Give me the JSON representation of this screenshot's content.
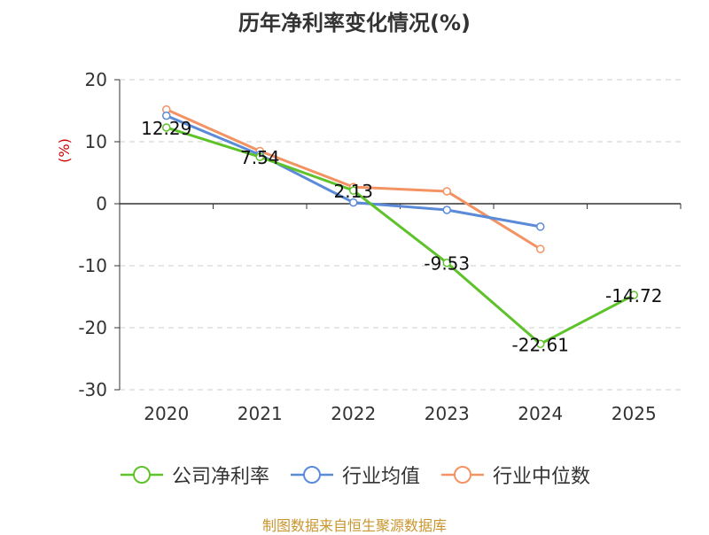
{
  "chart_data": {
    "type": "line",
    "title": "历年净利率变化情况(%)",
    "ylabel": "(%)",
    "categories": [
      "2020",
      "2021",
      "2022",
      "2023",
      "2024",
      "2025"
    ],
    "ylim": [
      -30,
      20
    ],
    "yticks": [
      20,
      10,
      0,
      -10,
      -20,
      -30
    ],
    "grid": true,
    "legend_position": "bottom",
    "series": [
      {
        "name": "公司净利率",
        "color": "#5ec22a",
        "values": [
          12.29,
          7.54,
          2.13,
          -9.53,
          -22.61,
          -14.72
        ],
        "labels": [
          "12.29",
          "7.54",
          "2.13",
          "-9.53",
          "-22.61",
          "-14.72"
        ]
      },
      {
        "name": "行业均值",
        "color": "#5b8ad8",
        "values": [
          14.2,
          7.9,
          0.2,
          -1.0,
          -3.7,
          null
        ]
      },
      {
        "name": "行业中位数",
        "color": "#f39263",
        "values": [
          15.2,
          8.5,
          2.7,
          2.0,
          -7.3,
          null
        ]
      }
    ]
  },
  "source": "制图数据来自恒生聚源数据库"
}
